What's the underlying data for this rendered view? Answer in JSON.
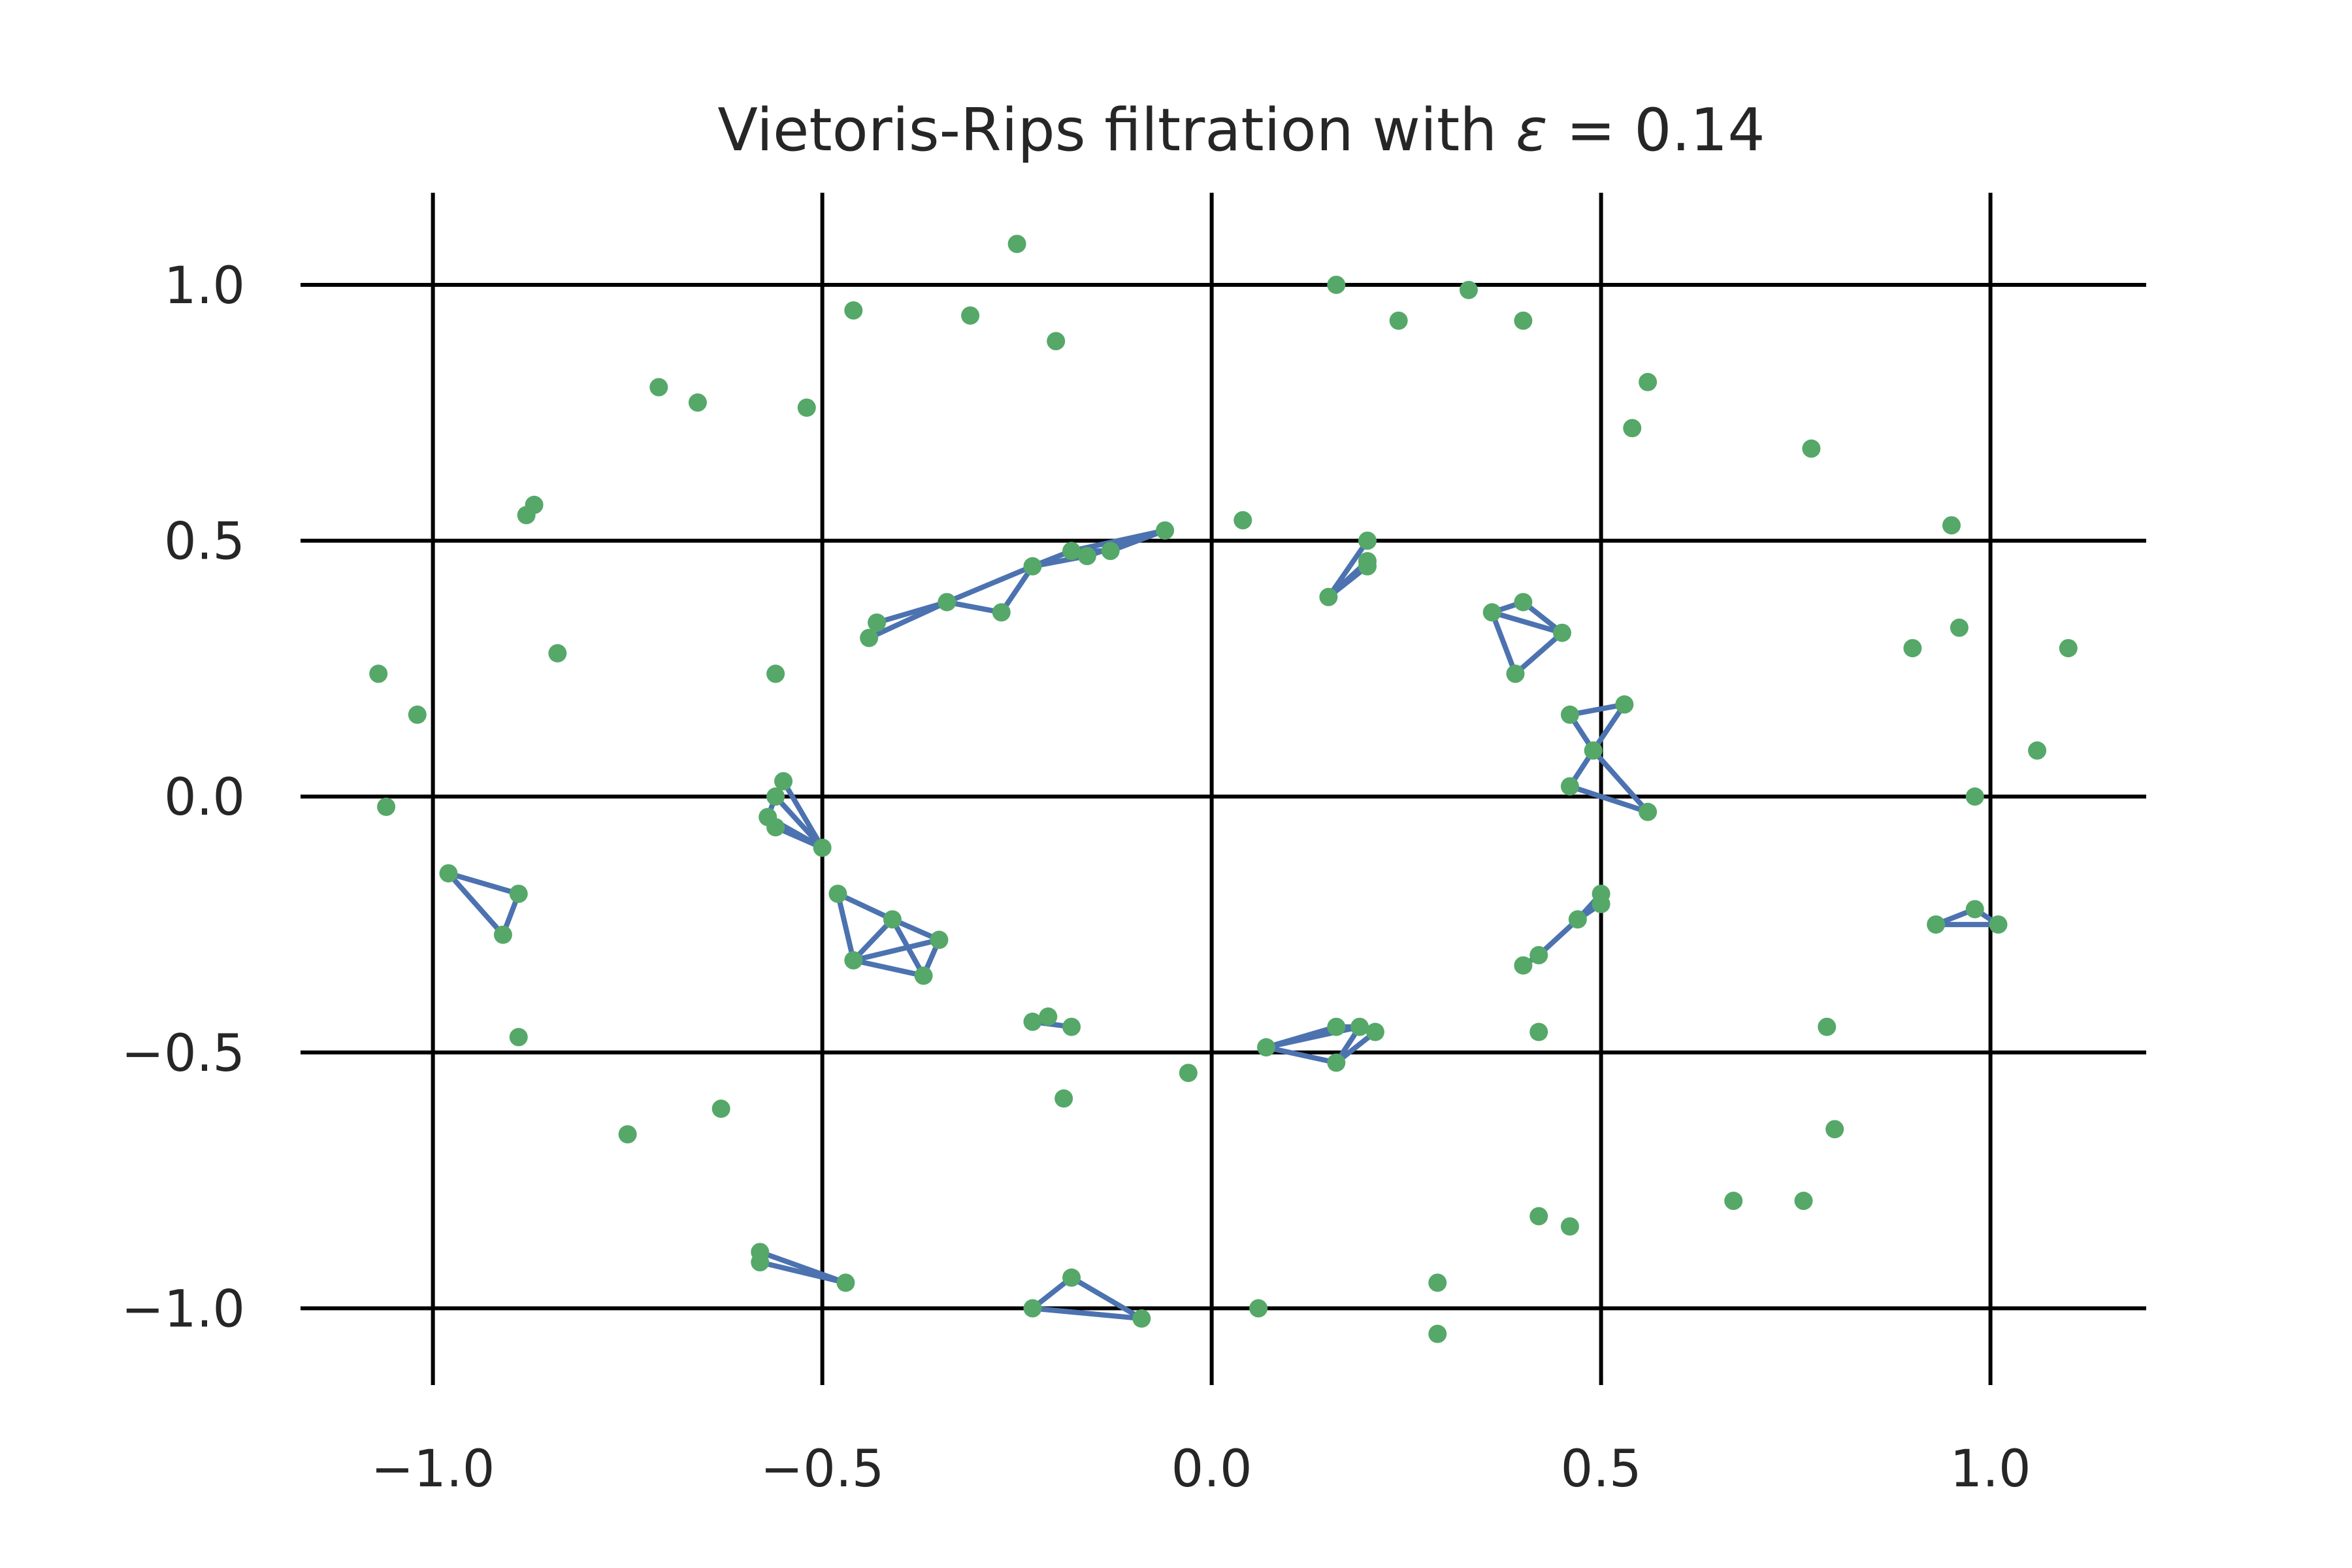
{
  "chart_data": {
    "type": "scatter",
    "title": "Vietoris-Rips filtration with ",
    "title_math_symbol": "ε",
    "title_math_rest": " = 0.14",
    "xlabel": "",
    "ylabel": "",
    "xlim": [
      -1.17,
      1.2
    ],
    "ylim": [
      -1.15,
      1.18
    ],
    "xticks": [
      -1.0,
      -0.5,
      0.0,
      0.5,
      1.0
    ],
    "yticks": [
      -1.0,
      -0.5,
      0.0,
      0.5,
      1.0
    ],
    "xtick_labels": [
      "−1.0",
      "−0.5",
      "0.0",
      "0.5",
      "1.0"
    ],
    "ytick_labels": [
      "1.0",
      "0.5",
      "0.0",
      "−0.5",
      "−1.0"
    ],
    "grid": true,
    "colors": {
      "points": "#55a868",
      "edges": "#4c72b0",
      "grid": "#000000",
      "text": "#262626"
    },
    "points": [
      [
        -0.25,
        1.08
      ],
      [
        -0.46,
        0.95
      ],
      [
        -0.31,
        0.94
      ],
      [
        -0.2,
        0.89
      ],
      [
        -0.71,
        0.8
      ],
      [
        -0.66,
        0.77
      ],
      [
        -0.52,
        0.76
      ],
      [
        -0.87,
        0.57
      ],
      [
        -0.88,
        0.55
      ],
      [
        -1.07,
        0.24
      ],
      [
        -0.84,
        0.28
      ],
      [
        -1.02,
        0.16
      ],
      [
        -0.56,
        0.24
      ],
      [
        -1.06,
        -0.02
      ],
      [
        -0.98,
        -0.15
      ],
      [
        -0.89,
        -0.19
      ],
      [
        -0.91,
        -0.27
      ],
      [
        -0.89,
        -0.47
      ],
      [
        -0.75,
        -0.66
      ],
      [
        -0.63,
        -0.61
      ],
      [
        -0.06,
        0.52
      ],
      [
        -0.13,
        0.48
      ],
      [
        -0.16,
        0.47
      ],
      [
        -0.18,
        0.48
      ],
      [
        -0.23,
        0.45
      ],
      [
        -0.27,
        0.36
      ],
      [
        -0.34,
        0.38
      ],
      [
        -0.43,
        0.34
      ],
      [
        -0.44,
        0.31
      ],
      [
        -0.55,
        0.03
      ],
      [
        -0.56,
        0.0
      ],
      [
        -0.57,
        -0.04
      ],
      [
        -0.56,
        -0.06
      ],
      [
        -0.5,
        -0.1
      ],
      [
        -0.48,
        -0.19
      ],
      [
        -0.41,
        -0.24
      ],
      [
        -0.35,
        -0.28
      ],
      [
        -0.46,
        -0.32
      ],
      [
        -0.37,
        -0.35
      ],
      [
        -0.23,
        -0.44
      ],
      [
        -0.21,
        -0.43
      ],
      [
        -0.18,
        -0.45
      ],
      [
        -0.19,
        -0.59
      ],
      [
        -0.03,
        -0.54
      ],
      [
        -0.58,
        -0.89
      ],
      [
        -0.58,
        -0.91
      ],
      [
        -0.47,
        -0.95
      ],
      [
        -0.18,
        -0.94
      ],
      [
        -0.23,
        -1.0
      ],
      [
        -0.09,
        -1.02
      ],
      [
        0.06,
        -1.0
      ],
      [
        0.29,
        -0.95
      ],
      [
        0.29,
        -1.05
      ],
      [
        0.16,
        1.0
      ],
      [
        0.24,
        0.93
      ],
      [
        0.33,
        0.99
      ],
      [
        0.4,
        0.93
      ],
      [
        0.56,
        0.81
      ],
      [
        0.54,
        0.72
      ],
      [
        0.77,
        0.68
      ],
      [
        0.04,
        0.54
      ],
      [
        0.2,
        0.5
      ],
      [
        0.2,
        0.46
      ],
      [
        0.2,
        0.45
      ],
      [
        0.15,
        0.39
      ],
      [
        0.36,
        0.36
      ],
      [
        0.4,
        0.38
      ],
      [
        0.45,
        0.32
      ],
      [
        0.39,
        0.24
      ],
      [
        0.46,
        0.16
      ],
      [
        0.53,
        0.18
      ],
      [
        0.49,
        0.09
      ],
      [
        0.46,
        0.02
      ],
      [
        0.56,
        -0.03
      ],
      [
        0.95,
        0.53
      ],
      [
        0.96,
        0.33
      ],
      [
        0.9,
        0.29
      ],
      [
        1.1,
        0.29
      ],
      [
        1.06,
        0.09
      ],
      [
        0.98,
        0.0
      ],
      [
        0.5,
        -0.19
      ],
      [
        0.5,
        -0.21
      ],
      [
        0.47,
        -0.24
      ],
      [
        0.42,
        -0.31
      ],
      [
        0.4,
        -0.33
      ],
      [
        0.93,
        -0.25
      ],
      [
        0.98,
        -0.22
      ],
      [
        1.01,
        -0.25
      ],
      [
        0.42,
        -0.46
      ],
      [
        0.79,
        -0.45
      ],
      [
        0.8,
        -0.65
      ],
      [
        0.07,
        -0.49
      ],
      [
        0.16,
        -0.45
      ],
      [
        0.19,
        -0.45
      ],
      [
        0.21,
        -0.46
      ],
      [
        0.16,
        -0.52
      ],
      [
        0.42,
        -0.82
      ],
      [
        0.46,
        -0.84
      ],
      [
        0.67,
        -0.79
      ],
      [
        0.76,
        -0.79
      ]
    ],
    "edges": [
      [
        -0.06,
        0.52,
        -0.13,
        0.48
      ],
      [
        -0.06,
        0.52,
        -0.16,
        0.47
      ],
      [
        -0.06,
        0.52,
        -0.18,
        0.48
      ],
      [
        -0.13,
        0.48,
        -0.18,
        0.48
      ],
      [
        -0.16,
        0.47,
        -0.23,
        0.45
      ],
      [
        -0.18,
        0.48,
        -0.23,
        0.45
      ],
      [
        -0.23,
        0.45,
        -0.27,
        0.36
      ],
      [
        -0.23,
        0.45,
        -0.34,
        0.38
      ],
      [
        -0.27,
        0.36,
        -0.34,
        0.38
      ],
      [
        -0.34,
        0.38,
        -0.43,
        0.34
      ],
      [
        -0.34,
        0.38,
        -0.44,
        0.31
      ],
      [
        -0.43,
        0.34,
        -0.44,
        0.31
      ],
      [
        -0.55,
        0.03,
        -0.5,
        -0.1
      ],
      [
        -0.56,
        0.0,
        -0.5,
        -0.1
      ],
      [
        -0.57,
        -0.04,
        -0.5,
        -0.1
      ],
      [
        -0.56,
        -0.06,
        -0.5,
        -0.1
      ],
      [
        -0.56,
        0.0,
        -0.57,
        -0.04
      ],
      [
        -0.48,
        -0.19,
        -0.46,
        -0.32
      ],
      [
        -0.48,
        -0.19,
        -0.41,
        -0.24
      ],
      [
        -0.41,
        -0.24,
        -0.35,
        -0.28
      ],
      [
        -0.41,
        -0.24,
        -0.46,
        -0.32
      ],
      [
        -0.41,
        -0.24,
        -0.37,
        -0.35
      ],
      [
        -0.35,
        -0.28,
        -0.46,
        -0.32
      ],
      [
        -0.35,
        -0.28,
        -0.37,
        -0.35
      ],
      [
        -0.46,
        -0.32,
        -0.37,
        -0.35
      ],
      [
        -0.98,
        -0.15,
        -0.89,
        -0.19
      ],
      [
        -0.98,
        -0.15,
        -0.91,
        -0.27
      ],
      [
        -0.89,
        -0.19,
        -0.91,
        -0.27
      ],
      [
        -0.23,
        -0.44,
        -0.18,
        -0.45
      ],
      [
        -0.58,
        -0.89,
        -0.47,
        -0.95
      ],
      [
        -0.58,
        -0.91,
        -0.47,
        -0.95
      ],
      [
        -0.23,
        -1.0,
        -0.18,
        -0.94
      ],
      [
        -0.18,
        -0.94,
        -0.09,
        -1.02
      ],
      [
        -0.23,
        -1.0,
        -0.09,
        -1.02
      ],
      [
        0.15,
        0.39,
        0.2,
        0.5
      ],
      [
        0.15,
        0.39,
        0.2,
        0.46
      ],
      [
        0.15,
        0.39,
        0.2,
        0.45
      ],
      [
        0.36,
        0.36,
        0.4,
        0.38
      ],
      [
        0.36,
        0.36,
        0.45,
        0.32
      ],
      [
        0.36,
        0.36,
        0.39,
        0.24
      ],
      [
        0.4,
        0.38,
        0.45,
        0.32
      ],
      [
        0.45,
        0.32,
        0.39,
        0.24
      ],
      [
        0.46,
        0.16,
        0.53,
        0.18
      ],
      [
        0.46,
        0.16,
        0.49,
        0.09
      ],
      [
        0.53,
        0.18,
        0.49,
        0.09
      ],
      [
        0.49,
        0.09,
        0.46,
        0.02
      ],
      [
        0.49,
        0.09,
        0.56,
        -0.03
      ],
      [
        0.46,
        0.02,
        0.56,
        -0.03
      ],
      [
        0.5,
        -0.19,
        0.47,
        -0.24
      ],
      [
        0.5,
        -0.21,
        0.47,
        -0.24
      ],
      [
        0.47,
        -0.24,
        0.42,
        -0.31
      ],
      [
        0.42,
        -0.31,
        0.4,
        -0.33
      ],
      [
        0.93,
        -0.25,
        0.98,
        -0.22
      ],
      [
        0.98,
        -0.22,
        1.01,
        -0.25
      ],
      [
        0.93,
        -0.25,
        1.01,
        -0.25
      ],
      [
        0.07,
        -0.49,
        0.16,
        -0.45
      ],
      [
        0.07,
        -0.49,
        0.19,
        -0.45
      ],
      [
        0.07,
        -0.49,
        0.16,
        -0.52
      ],
      [
        0.16,
        -0.45,
        0.19,
        -0.45
      ],
      [
        0.16,
        -0.45,
        0.21,
        -0.46
      ],
      [
        0.19,
        -0.45,
        0.16,
        -0.52
      ],
      [
        0.16,
        -0.52,
        0.21,
        -0.46
      ]
    ]
  }
}
